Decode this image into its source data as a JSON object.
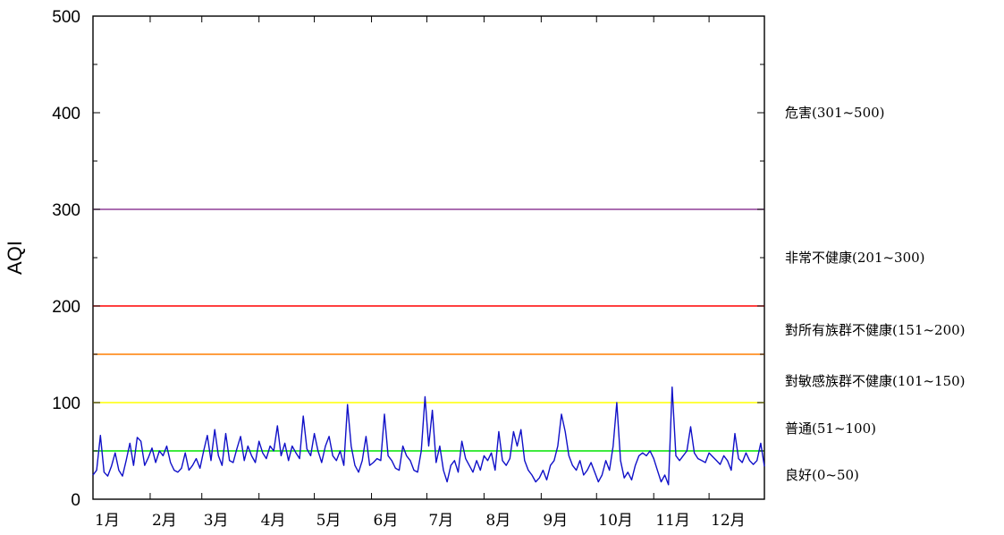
{
  "chart_data": {
    "type": "line",
    "title": "",
    "xlabel": "",
    "ylabel": "AQI",
    "ylim": [
      0,
      500
    ],
    "yticks": [
      0,
      100,
      200,
      300,
      400,
      500
    ],
    "xlim": [
      1,
      365
    ],
    "month_ticks": [
      {
        "label": "1月",
        "day": 1
      },
      {
        "label": "2月",
        "day": 32
      },
      {
        "label": "3月",
        "day": 60
      },
      {
        "label": "4月",
        "day": 91
      },
      {
        "label": "5月",
        "day": 121
      },
      {
        "label": "6月",
        "day": 152
      },
      {
        "label": "7月",
        "day": 182
      },
      {
        "label": "8月",
        "day": 213
      },
      {
        "label": "9月",
        "day": 244
      },
      {
        "label": "10月",
        "day": 274
      },
      {
        "label": "11月",
        "day": 305
      },
      {
        "label": "12月",
        "day": 335
      }
    ],
    "thresholds": [
      {
        "value": 50,
        "color": "#00e400"
      },
      {
        "value": 100,
        "color": "#ffff00"
      },
      {
        "value": 150,
        "color": "#ff7e00"
      },
      {
        "value": 200,
        "color": "#ff0000"
      },
      {
        "value": 300,
        "color": "#8f3f97"
      }
    ],
    "bands": [
      {
        "label": "良好(0~50)",
        "value": 25
      },
      {
        "label": "普通(51~100)",
        "value": 73
      },
      {
        "label": "對敏感族群不健康(101~150)",
        "value": 122
      },
      {
        "label": "對所有族群不健康(151~200)",
        "value": 175
      },
      {
        "label": "非常不健康(201~300)",
        "value": 250
      },
      {
        "label": "危害(301~500)",
        "value": 400
      }
    ],
    "series": [
      {
        "color": "#1010c8",
        "points": [
          [
            1,
            25
          ],
          [
            3,
            30
          ],
          [
            5,
            66
          ],
          [
            7,
            28
          ],
          [
            9,
            24
          ],
          [
            11,
            34
          ],
          [
            13,
            48
          ],
          [
            15,
            30
          ],
          [
            17,
            24
          ],
          [
            19,
            40
          ],
          [
            21,
            58
          ],
          [
            23,
            35
          ],
          [
            25,
            64
          ],
          [
            27,
            60
          ],
          [
            29,
            35
          ],
          [
            31,
            43
          ],
          [
            33,
            53
          ],
          [
            35,
            38
          ],
          [
            37,
            50
          ],
          [
            39,
            45
          ],
          [
            41,
            55
          ],
          [
            43,
            38
          ],
          [
            45,
            30
          ],
          [
            47,
            28
          ],
          [
            49,
            32
          ],
          [
            51,
            48
          ],
          [
            53,
            30
          ],
          [
            55,
            35
          ],
          [
            57,
            42
          ],
          [
            59,
            32
          ],
          [
            61,
            50
          ],
          [
            63,
            66
          ],
          [
            65,
            40
          ],
          [
            67,
            72
          ],
          [
            69,
            45
          ],
          [
            71,
            35
          ],
          [
            73,
            68
          ],
          [
            75,
            40
          ],
          [
            77,
            38
          ],
          [
            79,
            52
          ],
          [
            81,
            65
          ],
          [
            83,
            40
          ],
          [
            85,
            55
          ],
          [
            87,
            45
          ],
          [
            89,
            38
          ],
          [
            91,
            60
          ],
          [
            93,
            48
          ],
          [
            95,
            42
          ],
          [
            97,
            55
          ],
          [
            99,
            50
          ],
          [
            101,
            76
          ],
          [
            103,
            45
          ],
          [
            105,
            58
          ],
          [
            107,
            40
          ],
          [
            109,
            55
          ],
          [
            111,
            48
          ],
          [
            113,
            42
          ],
          [
            115,
            86
          ],
          [
            117,
            52
          ],
          [
            119,
            45
          ],
          [
            121,
            68
          ],
          [
            123,
            50
          ],
          [
            125,
            38
          ],
          [
            127,
            55
          ],
          [
            129,
            65
          ],
          [
            131,
            45
          ],
          [
            133,
            40
          ],
          [
            135,
            50
          ],
          [
            137,
            35
          ],
          [
            139,
            98
          ],
          [
            141,
            55
          ],
          [
            143,
            35
          ],
          [
            145,
            28
          ],
          [
            147,
            40
          ],
          [
            149,
            65
          ],
          [
            151,
            35
          ],
          [
            153,
            38
          ],
          [
            155,
            42
          ],
          [
            157,
            40
          ],
          [
            159,
            88
          ],
          [
            161,
            45
          ],
          [
            163,
            40
          ],
          [
            165,
            32
          ],
          [
            167,
            30
          ],
          [
            169,
            55
          ],
          [
            171,
            45
          ],
          [
            173,
            40
          ],
          [
            175,
            30
          ],
          [
            177,
            28
          ],
          [
            179,
            50
          ],
          [
            181,
            106
          ],
          [
            183,
            55
          ],
          [
            185,
            92
          ],
          [
            187,
            38
          ],
          [
            189,
            55
          ],
          [
            191,
            30
          ],
          [
            193,
            18
          ],
          [
            195,
            35
          ],
          [
            197,
            40
          ],
          [
            199,
            28
          ],
          [
            201,
            60
          ],
          [
            203,
            42
          ],
          [
            205,
            35
          ],
          [
            207,
            28
          ],
          [
            209,
            40
          ],
          [
            211,
            30
          ],
          [
            213,
            45
          ],
          [
            215,
            40
          ],
          [
            217,
            48
          ],
          [
            219,
            30
          ],
          [
            221,
            70
          ],
          [
            223,
            40
          ],
          [
            225,
            35
          ],
          [
            227,
            42
          ],
          [
            229,
            70
          ],
          [
            231,
            55
          ],
          [
            233,
            72
          ],
          [
            235,
            40
          ],
          [
            237,
            30
          ],
          [
            239,
            25
          ],
          [
            241,
            18
          ],
          [
            243,
            22
          ],
          [
            245,
            30
          ],
          [
            247,
            20
          ],
          [
            249,
            35
          ],
          [
            251,
            40
          ],
          [
            253,
            55
          ],
          [
            255,
            88
          ],
          [
            257,
            70
          ],
          [
            259,
            45
          ],
          [
            261,
            35
          ],
          [
            263,
            30
          ],
          [
            265,
            40
          ],
          [
            267,
            25
          ],
          [
            269,
            30
          ],
          [
            271,
            38
          ],
          [
            273,
            28
          ],
          [
            275,
            18
          ],
          [
            277,
            25
          ],
          [
            279,
            40
          ],
          [
            281,
            30
          ],
          [
            283,
            55
          ],
          [
            285,
            100
          ],
          [
            287,
            40
          ],
          [
            289,
            22
          ],
          [
            291,
            28
          ],
          [
            293,
            20
          ],
          [
            295,
            35
          ],
          [
            297,
            45
          ],
          [
            299,
            48
          ],
          [
            301,
            45
          ],
          [
            303,
            50
          ],
          [
            305,
            42
          ],
          [
            307,
            30
          ],
          [
            309,
            18
          ],
          [
            311,
            25
          ],
          [
            313,
            15
          ],
          [
            315,
            116
          ],
          [
            317,
            45
          ],
          [
            319,
            40
          ],
          [
            321,
            45
          ],
          [
            323,
            50
          ],
          [
            325,
            75
          ],
          [
            327,
            48
          ],
          [
            329,
            42
          ],
          [
            331,
            40
          ],
          [
            333,
            38
          ],
          [
            335,
            48
          ],
          [
            337,
            44
          ],
          [
            339,
            40
          ],
          [
            341,
            36
          ],
          [
            343,
            45
          ],
          [
            345,
            40
          ],
          [
            347,
            30
          ],
          [
            349,
            68
          ],
          [
            351,
            42
          ],
          [
            353,
            38
          ],
          [
            355,
            48
          ],
          [
            357,
            40
          ],
          [
            359,
            36
          ],
          [
            361,
            40
          ],
          [
            363,
            58
          ],
          [
            365,
            34
          ]
        ]
      }
    ]
  }
}
